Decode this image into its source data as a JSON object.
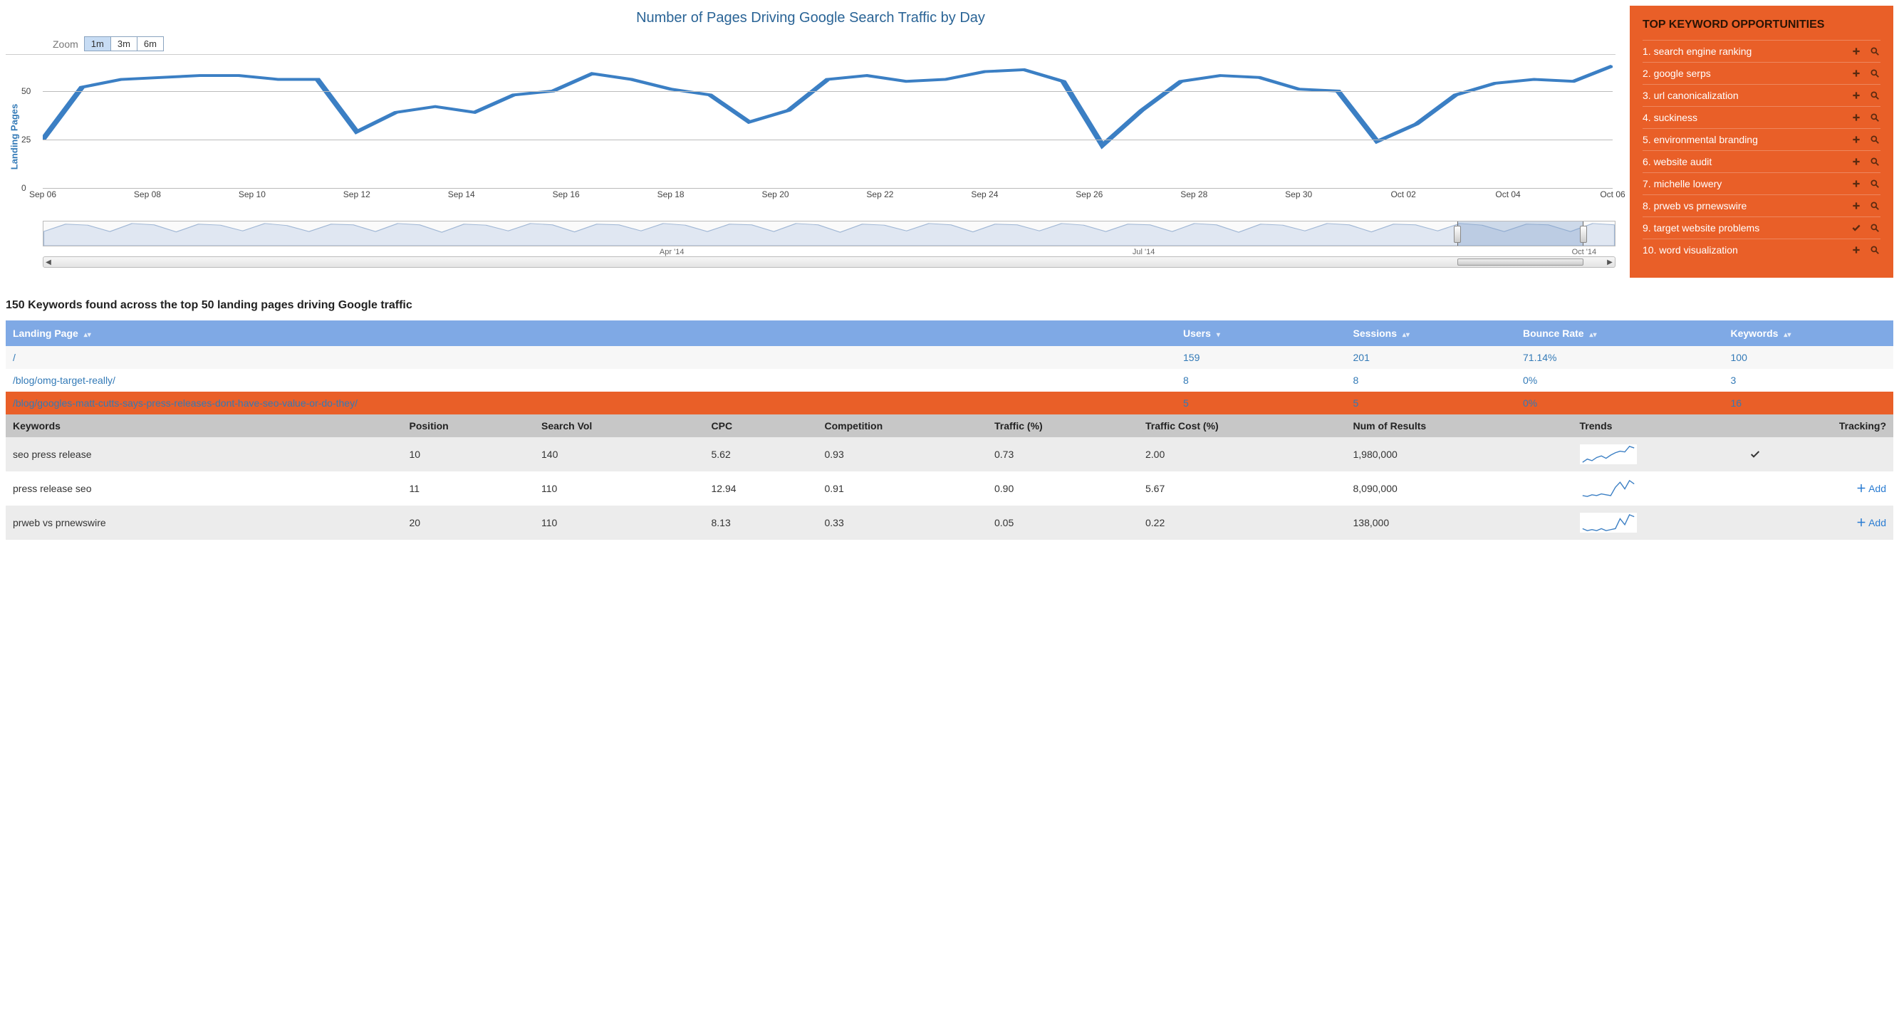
{
  "chart": {
    "title": "Number of Pages Driving Google Search Traffic by Day",
    "y_axis_label": "Landing Pages",
    "zoom_label": "Zoom",
    "zoom_options": [
      "1m",
      "3m",
      "6m"
    ],
    "zoom_active": 0,
    "type": "line",
    "line_color": "#3b7fc4",
    "line_width": 2,
    "grid_color": "#bbbbbb",
    "background_color": "#ffffff",
    "ylim": [
      0,
      65
    ],
    "y_ticks": [
      0,
      25,
      50
    ],
    "x_labels": [
      "Sep 06",
      "Sep 08",
      "Sep 10",
      "Sep 12",
      "Sep 14",
      "Sep 16",
      "Sep 18",
      "Sep 20",
      "Sep 22",
      "Sep 24",
      "Sep 26",
      "Sep 28",
      "Sep 30",
      "Oct 02",
      "Oct 04",
      "Oct 06"
    ],
    "values": [
      25,
      52,
      56,
      57,
      58,
      58,
      56,
      56,
      29,
      39,
      42,
      39,
      48,
      50,
      59,
      56,
      51,
      48,
      34,
      40,
      56,
      58,
      55,
      56,
      60,
      61,
      55,
      22,
      40,
      55,
      58,
      57,
      51,
      50,
      24,
      33,
      48,
      54,
      56,
      55,
      63
    ],
    "navigator": {
      "labels": [
        "Apr '14",
        "Jul '14",
        "Oct '14"
      ],
      "label_positions_pct": [
        40,
        70,
        98
      ],
      "selection_start_pct": 90,
      "selection_end_pct": 98,
      "fill_color": "#a7c1e0",
      "values": [
        36,
        58,
        55,
        36,
        60,
        56,
        35,
        58,
        55,
        38,
        60,
        54,
        36,
        58,
        56,
        36,
        60,
        56,
        34,
        58,
        55,
        38,
        60,
        56,
        35,
        58,
        56,
        38,
        60,
        55,
        36,
        58,
        56,
        36,
        60,
        56,
        34,
        58,
        55,
        38,
        60,
        56,
        35,
        58,
        56,
        38,
        60,
        55,
        36,
        58,
        56,
        36,
        60,
        56,
        34,
        58,
        55,
        38,
        60,
        56,
        35,
        58,
        56,
        38,
        60,
        55,
        36,
        58,
        56,
        36,
        60,
        56
      ]
    }
  },
  "opportunities": {
    "title": "TOP KEYWORD OPPORTUNITIES",
    "background_color": "#e95f28",
    "items": [
      {
        "n": "1.",
        "label": "search engine ranking",
        "action": "add"
      },
      {
        "n": "2.",
        "label": "google serps",
        "action": "add"
      },
      {
        "n": "3.",
        "label": "url canonicalization",
        "action": "add"
      },
      {
        "n": "4.",
        "label": "suckiness",
        "action": "add"
      },
      {
        "n": "5.",
        "label": "environmental branding",
        "action": "add"
      },
      {
        "n": "6.",
        "label": "website audit",
        "action": "add"
      },
      {
        "n": "7.",
        "label": "michelle lowery",
        "action": "add"
      },
      {
        "n": "8.",
        "label": "prweb vs prnewswire",
        "action": "add"
      },
      {
        "n": "9.",
        "label": "target website problems",
        "action": "check"
      },
      {
        "n": "10.",
        "label": "word visualization",
        "action": "add"
      }
    ]
  },
  "summary_line": "150 Keywords found across the top 50 landing pages driving Google traffic",
  "lp_table": {
    "header_bg": "#7fa9e5",
    "columns": [
      "Landing Page",
      "Users",
      "Sessions",
      "Bounce Rate",
      "Keywords"
    ],
    "sort_col": 1,
    "rows": [
      {
        "page": "/",
        "users": "159",
        "sessions": "201",
        "bounce": "71.14%",
        "keywords": "100",
        "open": false
      },
      {
        "page": "/blog/omg-target-really/",
        "users": "8",
        "sessions": "8",
        "bounce": "0%",
        "keywords": "3",
        "open": false
      },
      {
        "page": "/blog/googles-matt-cutts-says-press-releases-dont-have-seo-value-or-do-they/",
        "users": "5",
        "sessions": "5",
        "bounce": "0%",
        "keywords": "16",
        "open": true
      }
    ]
  },
  "kw_table": {
    "header_bg": "#c7c7c7",
    "columns": [
      "Keywords",
      "Position",
      "Search Vol",
      "CPC",
      "Competition",
      "Traffic (%)",
      "Traffic Cost (%)",
      "Num of Results",
      "Trends",
      "Tracking?"
    ],
    "rows": [
      {
        "kw": "seo press release",
        "pos": "10",
        "vol": "140",
        "cpc": "5.62",
        "comp": "0.93",
        "traf": "0.73",
        "cost": "2.00",
        "num": "1,980,000",
        "spark": [
          10,
          14,
          12,
          16,
          18,
          15,
          19,
          22,
          24,
          23,
          30,
          28
        ],
        "tracking": "check"
      },
      {
        "kw": "press release seo",
        "pos": "11",
        "vol": "110",
        "cpc": "12.94",
        "comp": "0.91",
        "traf": "0.90",
        "cost": "5.67",
        "num": "8,090,000",
        "spark": [
          12,
          11,
          13,
          12,
          14,
          13,
          12,
          22,
          28,
          20,
          30,
          26
        ],
        "tracking": "add"
      },
      {
        "kw": "prweb vs prnewswire",
        "pos": "20",
        "vol": "110",
        "cpc": "8.13",
        "comp": "0.33",
        "traf": "0.05",
        "cost": "0.22",
        "num": "138,000",
        "spark": [
          14,
          12,
          13,
          12,
          14,
          12,
          13,
          14,
          24,
          18,
          28,
          26
        ],
        "tracking": "add"
      }
    ],
    "spark_color": "#3b7fc4",
    "add_label": "Add"
  }
}
